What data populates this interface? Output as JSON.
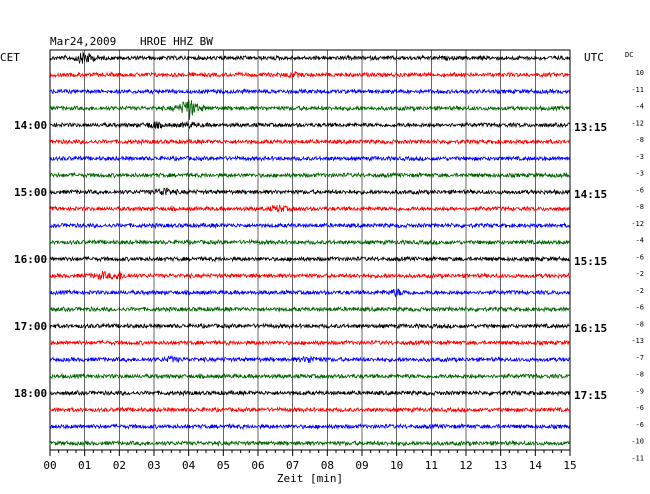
{
  "header": {
    "date": "Mar24,2009",
    "station": "HROE HHZ BW",
    "left_tz": "CET",
    "right_tz": "UTC",
    "dc_label": "DC"
  },
  "chart_data": {
    "type": "line",
    "title": "Mar24,2009   HROE HHZ BW",
    "xlabel": "Zeit [min]",
    "ylabel": "",
    "xlim": [
      0,
      15
    ],
    "x_ticks": [
      "00",
      "01",
      "02",
      "03",
      "04",
      "05",
      "06",
      "07",
      "08",
      "09",
      "10",
      "11",
      "12",
      "13",
      "14",
      "15"
    ],
    "grid": true,
    "trace_colors": [
      "#000000",
      "#ff0000",
      "#0000ff",
      "#006400"
    ],
    "left_hour_labels": [
      {
        "row": 4,
        "label": "14:00"
      },
      {
        "row": 8,
        "label": "15:00"
      },
      {
        "row": 12,
        "label": "16:00"
      },
      {
        "row": 16,
        "label": "17:00"
      },
      {
        "row": 20,
        "label": "18:00"
      }
    ],
    "right_hour_labels": [
      {
        "row": 4,
        "label": "13:15"
      },
      {
        "row": 8,
        "label": "14:15"
      },
      {
        "row": 12,
        "label": "15:15"
      },
      {
        "row": 16,
        "label": "16:15"
      },
      {
        "row": 20,
        "label": "17:15"
      }
    ],
    "dc_offsets": [
      "10",
      "-11",
      "-4",
      "-12",
      "-8",
      "-3",
      "-3",
      "-6",
      "-8",
      "-12",
      "-4",
      "-6",
      "-2",
      "-2",
      "-6",
      "-8",
      "-13",
      "-7",
      "-8",
      "-9",
      "-6",
      "-6",
      "-10",
      "-11"
    ],
    "events": [
      {
        "row": 0,
        "minute": 1.0,
        "amp": 7
      },
      {
        "row": 1,
        "minute": 7.0,
        "amp": 2
      },
      {
        "row": 3,
        "minute": 4.0,
        "amp": 12
      },
      {
        "row": 4,
        "minute": 3.0,
        "amp": 3
      },
      {
        "row": 4,
        "minute": 4.0,
        "amp": 2
      },
      {
        "row": 8,
        "minute": 3.3,
        "amp": 4
      },
      {
        "row": 9,
        "minute": 6.6,
        "amp": 3
      },
      {
        "row": 13,
        "minute": 1.5,
        "amp": 3
      },
      {
        "row": 13,
        "minute": 2.0,
        "amp": 3
      },
      {
        "row": 14,
        "minute": 10.0,
        "amp": 3
      },
      {
        "row": 18,
        "minute": 3.5,
        "amp": 2
      },
      {
        "row": 18,
        "minute": 7.5,
        "amp": 3
      }
    ]
  }
}
